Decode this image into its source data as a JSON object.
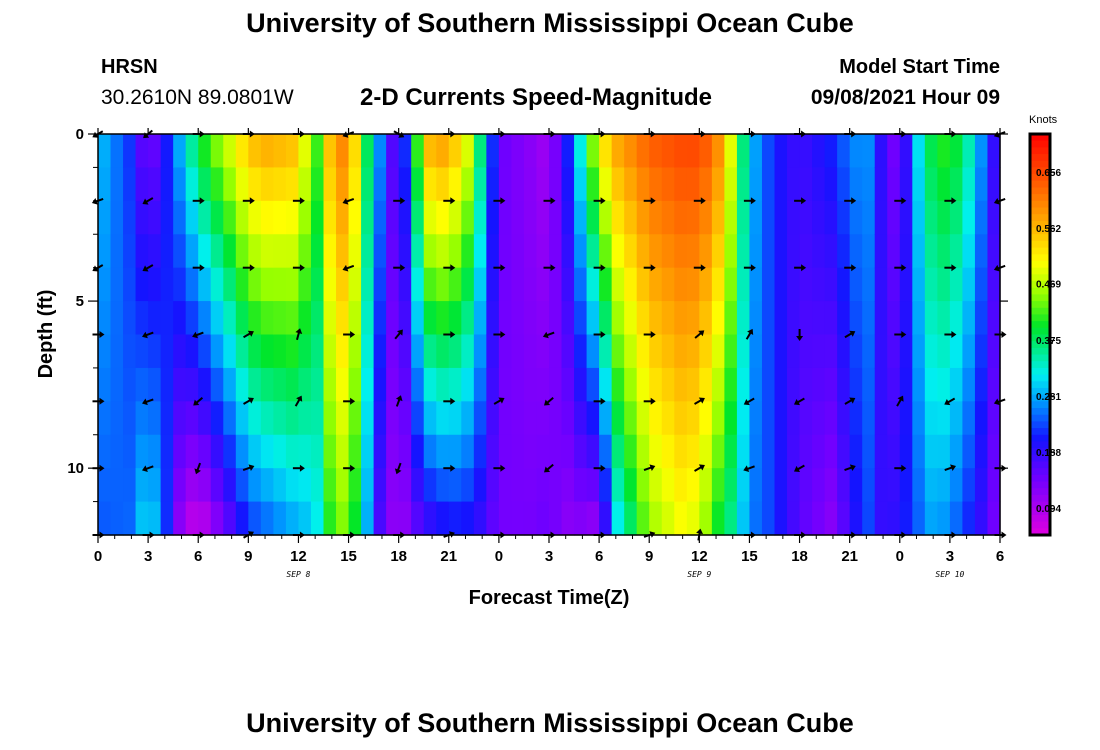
{
  "header": {
    "title": "University of Southern Mississippi Ocean Cube",
    "station_name": "HRSN",
    "station_coords": "30.2610N  89.0801W",
    "chart_title": "2-D Currents Speed-Magnitude",
    "model_label": "Model Start Time",
    "model_time": "09/08/2021 Hour 09"
  },
  "footer": {
    "title": "University of Southern Mississippi Ocean Cube"
  },
  "chart_data": {
    "type": "heatmap",
    "title": "2-D Currents Speed-Magnitude",
    "xlabel": "Forecast Time(Z)",
    "ylabel": "Depth (ft)",
    "x_range_hours": [
      0,
      54
    ],
    "x_tick_labels": [
      "0",
      "3",
      "6",
      "9",
      "12",
      "15",
      "18",
      "21",
      "0",
      "3",
      "6",
      "9",
      "12",
      "15",
      "18",
      "21",
      "0",
      "3",
      "6"
    ],
    "date_labels": [
      {
        "text": "SEP 8",
        "hour": 12
      },
      {
        "text": "SEP 9",
        "hour": 36
      },
      {
        "text": "SEP 10",
        "hour": 51
      }
    ],
    "y_range": [
      0,
      12
    ],
    "y_tick_labels": [
      "0",
      "5",
      "10"
    ],
    "y_tick_values": [
      0,
      5,
      10
    ],
    "arrow_depths": [
      0,
      2,
      4,
      6,
      8,
      10,
      12
    ],
    "arrow_hours": [
      0,
      3,
      6,
      9,
      12,
      15,
      18,
      21,
      24,
      27,
      30,
      33,
      36,
      39,
      42,
      45,
      48,
      51,
      54
    ],
    "colorbar": {
      "units": "Knots",
      "range": [
        0.05,
        0.72
      ],
      "tick_labels": [
        "0.656",
        "0.562",
        "0.469",
        "0.375",
        "0.281",
        "0.188",
        "0.094"
      ],
      "tick_values": [
        0.656,
        0.562,
        0.469,
        0.375,
        0.281,
        0.188,
        0.094
      ]
    },
    "speed_profiles": [
      {
        "hour": 0,
        "surface": 0.3,
        "bottom": 0.24
      },
      {
        "hour": 2,
        "surface": 0.22,
        "bottom": 0.25
      },
      {
        "hour": 3,
        "surface": 0.12,
        "bottom": 0.33
      },
      {
        "hour": 4,
        "surface": 0.2,
        "bottom": 0.24
      },
      {
        "hour": 5,
        "surface": 0.3,
        "bottom": 0.1
      },
      {
        "hour": 6,
        "surface": 0.4,
        "bottom": 0.06
      },
      {
        "hour": 8,
        "surface": 0.5,
        "bottom": 0.16
      },
      {
        "hour": 9,
        "surface": 0.56,
        "bottom": 0.22
      },
      {
        "hour": 10,
        "surface": 0.58,
        "bottom": 0.24
      },
      {
        "hour": 12,
        "surface": 0.56,
        "bottom": 0.28
      },
      {
        "hour": 13,
        "surface": 0.4,
        "bottom": 0.3
      },
      {
        "hour": 14,
        "surface": 0.58,
        "bottom": 0.42
      },
      {
        "hour": 15,
        "surface": 0.62,
        "bottom": 0.45
      },
      {
        "hour": 16,
        "surface": 0.4,
        "bottom": 0.3
      },
      {
        "hour": 17,
        "surface": 0.25,
        "bottom": 0.15
      },
      {
        "hour": 18,
        "surface": 0.12,
        "bottom": 0.1
      },
      {
        "hour": 19,
        "surface": 0.4,
        "bottom": 0.15
      },
      {
        "hour": 20,
        "surface": 0.6,
        "bottom": 0.18
      },
      {
        "hour": 21,
        "surface": 0.58,
        "bottom": 0.2
      },
      {
        "hour": 22,
        "surface": 0.52,
        "bottom": 0.2
      },
      {
        "hour": 23,
        "surface": 0.35,
        "bottom": 0.18
      },
      {
        "hour": 24,
        "surface": 0.15,
        "bottom": 0.14
      },
      {
        "hour": 26,
        "surface": 0.12,
        "bottom": 0.14
      },
      {
        "hour": 27,
        "surface": 0.1,
        "bottom": 0.15
      },
      {
        "hour": 28,
        "surface": 0.2,
        "bottom": 0.12
      },
      {
        "hour": 29,
        "surface": 0.35,
        "bottom": 0.12
      },
      {
        "hour": 30,
        "surface": 0.52,
        "bottom": 0.1
      },
      {
        "hour": 31,
        "surface": 0.58,
        "bottom": 0.3
      },
      {
        "hour": 33,
        "surface": 0.64,
        "bottom": 0.45
      },
      {
        "hour": 35,
        "surface": 0.66,
        "bottom": 0.5
      },
      {
        "hour": 36,
        "surface": 0.66,
        "bottom": 0.48
      },
      {
        "hour": 37,
        "surface": 0.62,
        "bottom": 0.4
      },
      {
        "hour": 38,
        "surface": 0.48,
        "bottom": 0.35
      },
      {
        "hour": 39,
        "surface": 0.3,
        "bottom": 0.26
      },
      {
        "hour": 40,
        "surface": 0.24,
        "bottom": 0.24
      },
      {
        "hour": 41,
        "surface": 0.2,
        "bottom": 0.2
      },
      {
        "hour": 42,
        "surface": 0.18,
        "bottom": 0.16
      },
      {
        "hour": 44,
        "surface": 0.22,
        "bottom": 0.12
      },
      {
        "hour": 45,
        "surface": 0.26,
        "bottom": 0.18
      },
      {
        "hour": 46,
        "surface": 0.28,
        "bottom": 0.24
      },
      {
        "hour": 47,
        "surface": 0.18,
        "bottom": 0.18
      },
      {
        "hour": 48,
        "surface": 0.12,
        "bottom": 0.2
      },
      {
        "hour": 49,
        "surface": 0.3,
        "bottom": 0.24
      },
      {
        "hour": 50,
        "surface": 0.4,
        "bottom": 0.28
      },
      {
        "hour": 51,
        "surface": 0.42,
        "bottom": 0.26
      },
      {
        "hour": 52,
        "surface": 0.36,
        "bottom": 0.22
      },
      {
        "hour": 53,
        "surface": 0.26,
        "bottom": 0.18
      },
      {
        "hour": 54,
        "surface": 0.15,
        "bottom": 0.12
      }
    ],
    "arrow_directions_deg": [
      [
        210,
        220,
        0,
        0,
        0,
        200,
        330,
        0,
        0,
        0,
        0,
        0,
        0,
        0,
        0,
        0,
        0,
        0,
        200
      ],
      [
        200,
        210,
        0,
        0,
        0,
        200,
        0,
        0,
        0,
        0,
        0,
        0,
        0,
        0,
        0,
        0,
        0,
        0,
        200
      ],
      [
        210,
        210,
        0,
        0,
        0,
        200,
        0,
        0,
        0,
        0,
        0,
        0,
        0,
        0,
        0,
        0,
        0,
        0,
        200
      ],
      [
        0,
        200,
        200,
        30,
        75,
        0,
        50,
        0,
        0,
        200,
        0,
        0,
        40,
        60,
        270,
        30,
        0,
        0,
        0
      ],
      [
        0,
        200,
        220,
        30,
        60,
        0,
        70,
        0,
        30,
        220,
        0,
        0,
        30,
        210,
        210,
        30,
        60,
        210,
        200
      ],
      [
        0,
        200,
        250,
        20,
        0,
        0,
        250,
        0,
        0,
        220,
        0,
        20,
        30,
        200,
        210,
        20,
        0,
        20,
        0
      ],
      [
        0,
        0,
        0,
        30,
        0,
        0,
        0,
        20,
        0,
        0,
        0,
        20,
        80,
        0,
        0,
        0,
        0,
        0,
        0
      ]
    ]
  }
}
